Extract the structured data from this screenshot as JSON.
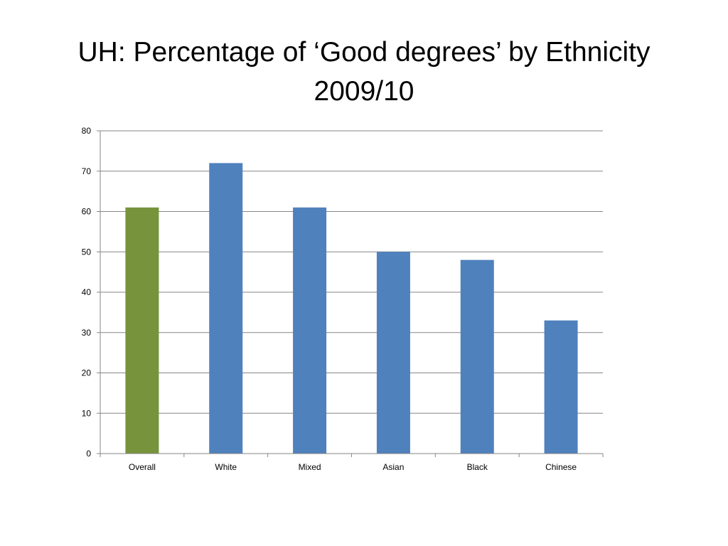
{
  "title_line1": "UH: Percentage of ‘Good degrees’ by Ethnicity",
  "title_line2": "2009/10",
  "chart_data": {
    "type": "bar",
    "title": "UH: Percentage of ‘Good degrees’ by Ethnicity 2009/10",
    "categories": [
      "Overall",
      "White",
      "Mixed",
      "Asian",
      "Black",
      "Chinese"
    ],
    "values": [
      61,
      72,
      61,
      50,
      48,
      33
    ],
    "colors": [
      "#77933c",
      "#4f81bd",
      "#4f81bd",
      "#4f81bd",
      "#4f81bd",
      "#4f81bd"
    ],
    "ylim": [
      0,
      80
    ],
    "yticks": [
      0,
      10,
      20,
      30,
      40,
      50,
      60,
      70,
      80
    ],
    "grid": true,
    "legend": "none",
    "xlabel": "",
    "ylabel": ""
  }
}
